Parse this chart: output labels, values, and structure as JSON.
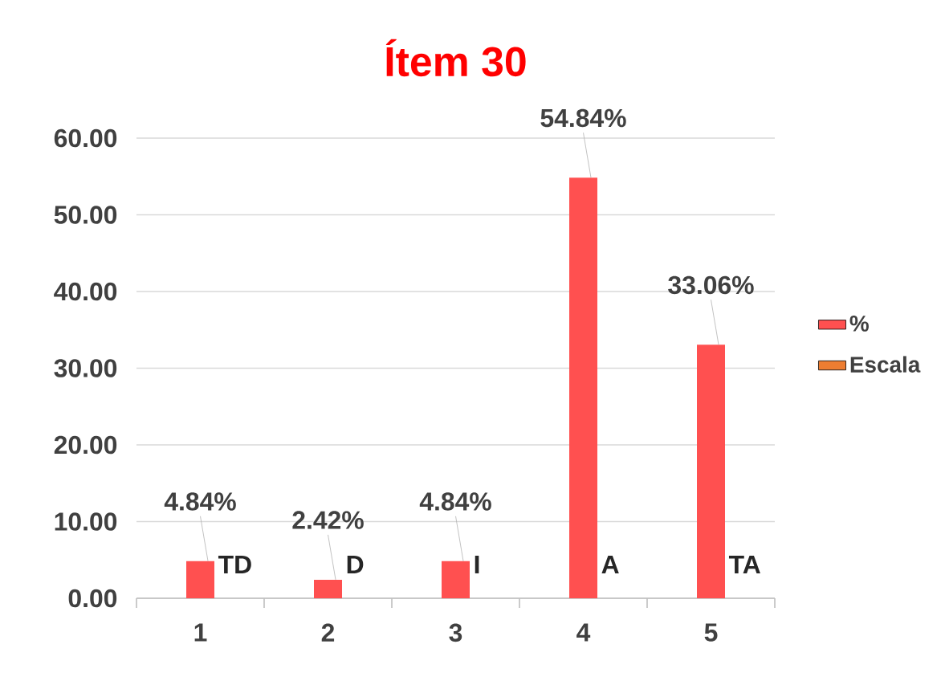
{
  "chart_data": {
    "type": "bar",
    "title": "Ítem 30",
    "categories": [
      "1",
      "2",
      "3",
      "4",
      "5"
    ],
    "series": [
      {
        "name": "%",
        "color": "#ff5050",
        "values": [
          4.84,
          2.42,
          4.84,
          54.84,
          33.06
        ],
        "value_labels": [
          "4.84%",
          "2.42%",
          "4.84%",
          "54.84%",
          "33.06%"
        ]
      },
      {
        "name": "Escala",
        "color": "#ed7d31",
        "values": [
          null,
          null,
          null,
          null,
          null
        ],
        "value_labels": [
          "TD",
          "D",
          "I",
          "A",
          "TA"
        ]
      }
    ],
    "ylim": [
      0,
      60
    ],
    "yticks": [
      {
        "value": 0,
        "label": "0.00"
      },
      {
        "value": 10,
        "label": "10.00"
      },
      {
        "value": 20,
        "label": "20.00"
      },
      {
        "value": 30,
        "label": "30.00"
      },
      {
        "value": 40,
        "label": "40.00"
      },
      {
        "value": 50,
        "label": "50.00"
      },
      {
        "value": 60,
        "label": "60.00"
      }
    ],
    "grid": "y",
    "legend": "right"
  }
}
